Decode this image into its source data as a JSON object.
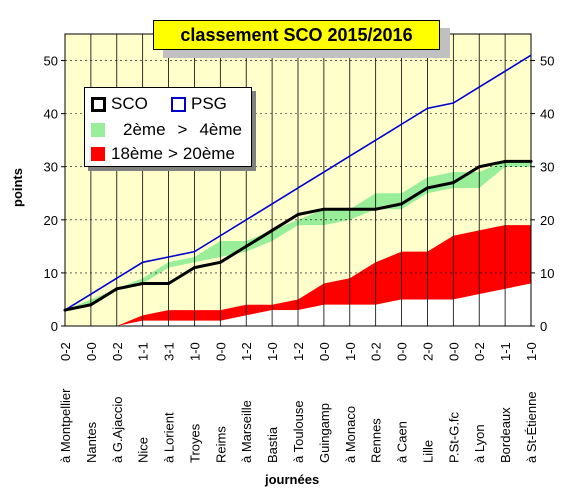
{
  "chart_data": {
    "type": "area",
    "title": "classement SCO 2015/2016",
    "xlabel": "journées",
    "ylabel": "points",
    "ylim": [
      0,
      55
    ],
    "yticks": [
      0,
      10,
      20,
      30,
      40,
      50
    ],
    "grid": "vertical lines",
    "legend_placement": "top-left",
    "categories": [
      "à Montpellier",
      "Nantes",
      "à G.Ajaccio",
      "Nice",
      "à Lorient",
      "Troyes",
      "Reims",
      "à Marseille",
      "Bastia",
      "à Toulouse",
      "Guingamp",
      "à Monaco",
      "Rennes",
      "à Caen",
      "Lille",
      "P.St-G.fc",
      "à Lyon",
      "Bordeaux",
      "à St-Étienne"
    ],
    "scores": [
      "0-2",
      "0-0",
      "0-2",
      "1-1",
      "3-1",
      "1-0",
      "0-0",
      "1-2",
      "1-0",
      "1-2",
      "0-0",
      "1-0",
      "0-2",
      "0-0",
      "2-0",
      "0-0",
      "0-2",
      "1-1",
      "1-0"
    ],
    "series": [
      {
        "name": "SCO",
        "values": [
          3,
          4,
          7,
          8,
          8,
          11,
          12,
          15,
          18,
          21,
          22,
          22,
          22,
          23,
          26,
          27,
          30,
          31,
          31
        ]
      },
      {
        "name": "PSG",
        "values": [
          3,
          6,
          9,
          12,
          13,
          14,
          17,
          20,
          23,
          26,
          29,
          32,
          35,
          38,
          41,
          42,
          45,
          48,
          51
        ]
      },
      {
        "name": "2ème > 4ème",
        "upper": [
          3,
          5,
          7,
          9,
          12,
          13,
          16,
          16,
          18,
          20,
          22,
          22,
          25,
          25,
          28,
          29,
          29,
          31,
          31
        ],
        "lower": [
          3,
          4,
          7,
          8,
          11,
          12,
          13,
          14,
          16,
          19,
          19,
          20,
          22,
          22,
          25,
          26,
          26,
          30,
          30
        ]
      },
      {
        "name": "18ème > 20ème",
        "upper": [
          0,
          0,
          0,
          2,
          3,
          3,
          3,
          4,
          4,
          5,
          8,
          9,
          12,
          14,
          14,
          17,
          18,
          19,
          19
        ],
        "lower": [
          0,
          0,
          0,
          1,
          1,
          1,
          1,
          2,
          3,
          3,
          4,
          4,
          4,
          5,
          5,
          5,
          6,
          7,
          8
        ]
      }
    ],
    "legend": {
      "sco": "SCO",
      "psg": "PSG",
      "top_a": "2ème",
      "top_sep": ">",
      "top_b": "4ème",
      "bot_a": "18ème",
      "bot_sep": ">",
      "bot_b": "20ème"
    },
    "colors": {
      "background": "#ffffcc",
      "top_band": "#99ee99",
      "bottom_band": "#ff0000",
      "sco": "#000000",
      "psg": "#0000cc",
      "title_bg": "#ffff00"
    }
  }
}
